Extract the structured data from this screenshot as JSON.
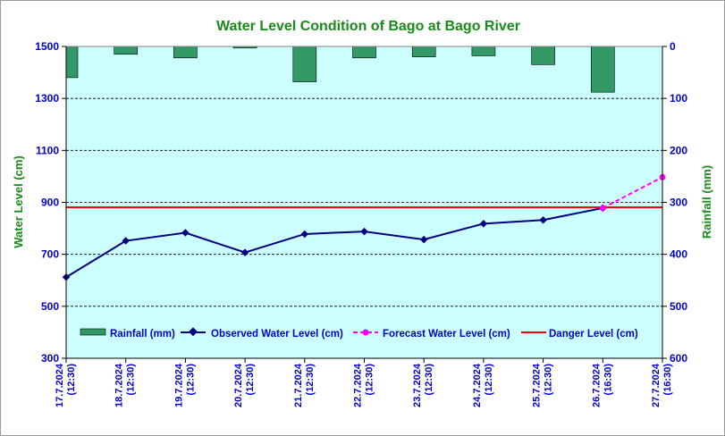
{
  "chart_data": {
    "type": "bar+line",
    "title": "Water Level Condition of Bago at Bago River",
    "ylabel_left": "Water Level (cm)",
    "ylabel_right": "Rainfall (mm)",
    "ylim_left": [
      300,
      1500
    ],
    "yticks_left": [
      "300",
      "500",
      "700",
      "900",
      "1100",
      "1300",
      "1500"
    ],
    "ylim_right_inverted": [
      0,
      600
    ],
    "yticks_right": [
      "0",
      "100",
      "200",
      "300",
      "400",
      "500",
      "600"
    ],
    "categories": [
      [
        "17.7.2024",
        "(12:30)"
      ],
      [
        "18.7.2024",
        "(12:30)"
      ],
      [
        "19.7.2024",
        "(12:30)"
      ],
      [
        "20.7.2024",
        "(12:30)"
      ],
      [
        "21.7.2024",
        "(12:30)"
      ],
      [
        "22.7.2024",
        "(12:30)"
      ],
      [
        "23.7.2024",
        "(12:30)"
      ],
      [
        "24.7.2024",
        "(12:30)"
      ],
      [
        "25.7.2024",
        "(12:30)"
      ],
      [
        "26.7.2024",
        "(16:30)"
      ],
      [
        "27.7.2024",
        "(16:30)"
      ]
    ],
    "rainfall_mm": [
      60,
      15,
      22,
      3,
      68,
      22,
      20,
      18,
      35,
      88,
      null
    ],
    "observed_water_level_cm": [
      612,
      752,
      783,
      707,
      778,
      788,
      757,
      818,
      832,
      878,
      null
    ],
    "forecast_water_level_cm": [
      null,
      null,
      null,
      null,
      null,
      null,
      null,
      null,
      null,
      878,
      997
    ],
    "danger_level_cm": 881,
    "legend": {
      "rainfall": "Rainfall (mm)",
      "observed": "Observed Water Level (cm)",
      "forecast": "Forecast Water Level (cm)",
      "danger": "Danger Level (cm)"
    },
    "colors": {
      "plot_bg": "#ccffff",
      "rainfall_bar": "#339966",
      "observed_line": "#000080",
      "forecast_line": "#ff00ff",
      "danger_line": "#ff0000",
      "grid": "#000000",
      "title_text": "#1a8a1a",
      "tick_text": "#0000cc"
    },
    "grid": true,
    "legend_position": "bottom-inside"
  }
}
